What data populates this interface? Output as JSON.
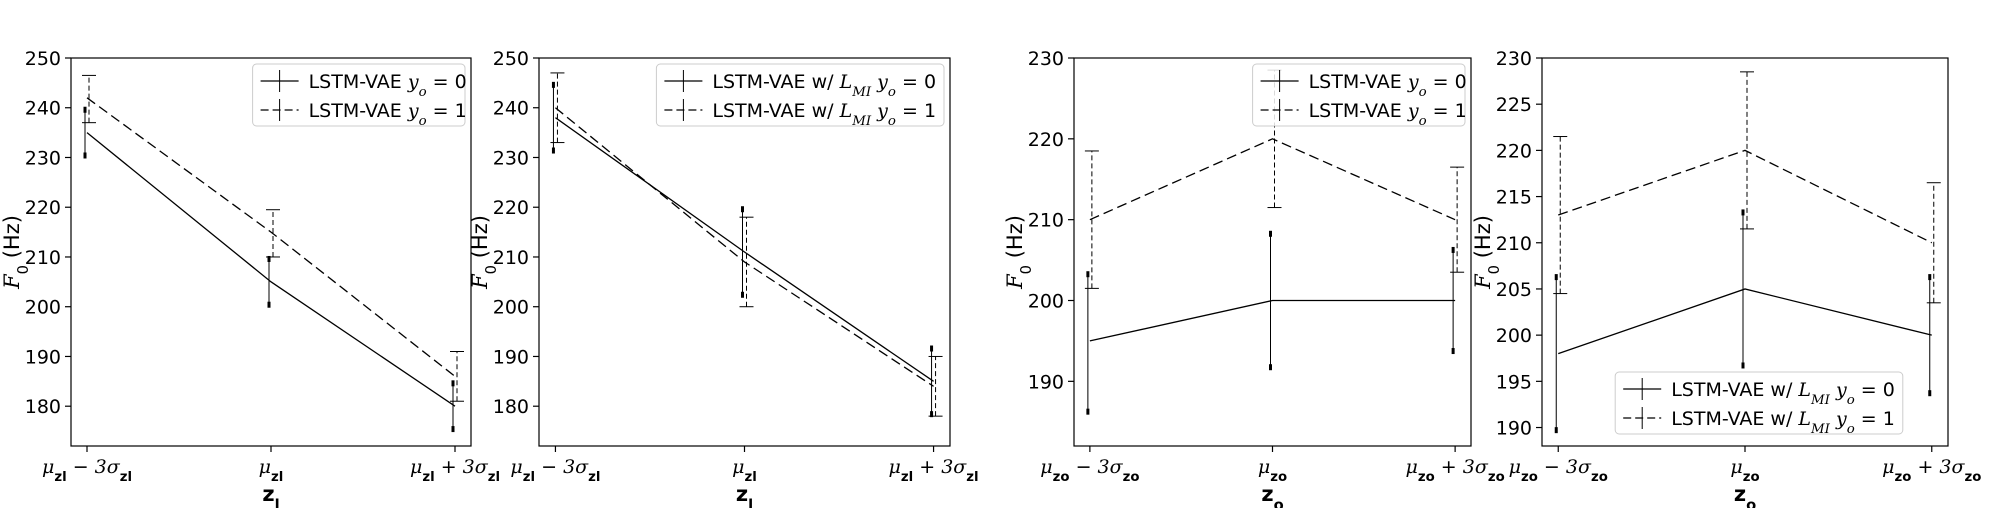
{
  "chart_data": [
    {
      "type": "line",
      "title": "",
      "xlabel": "z_l",
      "ylabel": "F_0 (Hz)",
      "categories": [
        "μ_zl − 3σ_zl",
        "μ_zl",
        "μ_zl + 3σ_zl"
      ],
      "ylim": [
        172,
        250
      ],
      "yticks": [
        180,
        190,
        200,
        210,
        220,
        230,
        240,
        250
      ],
      "grid": false,
      "legend_position": "top-right",
      "series": [
        {
          "name": "LSTM-VAE y_o = 0",
          "style": "solid",
          "values": [
            235,
            205,
            180
          ],
          "err_low": [
            230,
            200,
            175
          ],
          "err_high": [
            240,
            210,
            185
          ]
        },
        {
          "name": "LSTM-VAE y_o = 1",
          "style": "dashed",
          "values": [
            242,
            215,
            186
          ],
          "err_low": [
            237,
            210,
            181
          ],
          "err_high": [
            246.5,
            219.5,
            191
          ]
        }
      ]
    },
    {
      "type": "line",
      "title": "",
      "xlabel": "z_l",
      "ylabel": "F_0 (Hz)",
      "categories": [
        "μ_zl − 3σ_zl",
        "μ_zl",
        "μ_zl + 3σ_zl"
      ],
      "ylim": [
        172,
        250
      ],
      "yticks": [
        180,
        190,
        200,
        210,
        220,
        230,
        240,
        250
      ],
      "grid": false,
      "legend_position": "top-right",
      "series": [
        {
          "name": "LSTM-VAE w/ L_MI y_o = 0",
          "style": "solid",
          "values": [
            238,
            211,
            185
          ],
          "err_low": [
            231,
            202,
            178
          ],
          "err_high": [
            245,
            220,
            192
          ]
        },
        {
          "name": "LSTM-VAE w/ L_MI y_o = 1",
          "style": "dashed",
          "values": [
            240,
            209,
            184
          ],
          "err_low": [
            233,
            200,
            178
          ],
          "err_high": [
            247,
            218,
            190
          ]
        }
      ]
    },
    {
      "type": "line",
      "title": "",
      "xlabel": "z_o",
      "ylabel": "F_0 (Hz)",
      "categories": [
        "μ_zo − 3σ_zo",
        "μ_zo",
        "μ_zo + 3σ_zo"
      ],
      "ylim": [
        182,
        230
      ],
      "yticks": [
        190,
        200,
        210,
        220,
        230
      ],
      "grid": false,
      "legend_position": "top-right",
      "series": [
        {
          "name": "LSTM-VAE y_o = 0",
          "style": "solid",
          "values": [
            195,
            200,
            200
          ],
          "err_low": [
            186,
            191.5,
            193.5
          ],
          "err_high": [
            203.5,
            208.5,
            206.5
          ]
        },
        {
          "name": "LSTM-VAE y_o = 1",
          "style": "dashed",
          "values": [
            210,
            220,
            210
          ],
          "err_low": [
            201.5,
            211.5,
            203.5
          ],
          "err_high": [
            218.5,
            228.5,
            216.5
          ]
        }
      ]
    },
    {
      "type": "line",
      "title": "",
      "xlabel": "z_o",
      "ylabel": "F_0 (Hz)",
      "categories": [
        "μ_zo − 3σ_zo",
        "μ_zo",
        "μ_zo + 3σ_zo"
      ],
      "ylim": [
        188,
        230
      ],
      "yticks": [
        190,
        195,
        200,
        205,
        210,
        215,
        220,
        225,
        230
      ],
      "grid": false,
      "legend_position": "lower-center",
      "series": [
        {
          "name": "LSTM-VAE w/ L_MI y_o = 0",
          "style": "solid",
          "values": [
            198,
            205,
            200
          ],
          "err_low": [
            189.5,
            196.5,
            193.5
          ],
          "err_high": [
            206.5,
            213.5,
            206.5
          ]
        },
        {
          "name": "LSTM-VAE w/ L_MI y_o = 1",
          "style": "dashed",
          "values": [
            213,
            220,
            210
          ],
          "err_low": [
            204.5,
            211.5,
            203.5
          ],
          "err_high": [
            221.5,
            228.5,
            216.5
          ]
        }
      ]
    }
  ]
}
